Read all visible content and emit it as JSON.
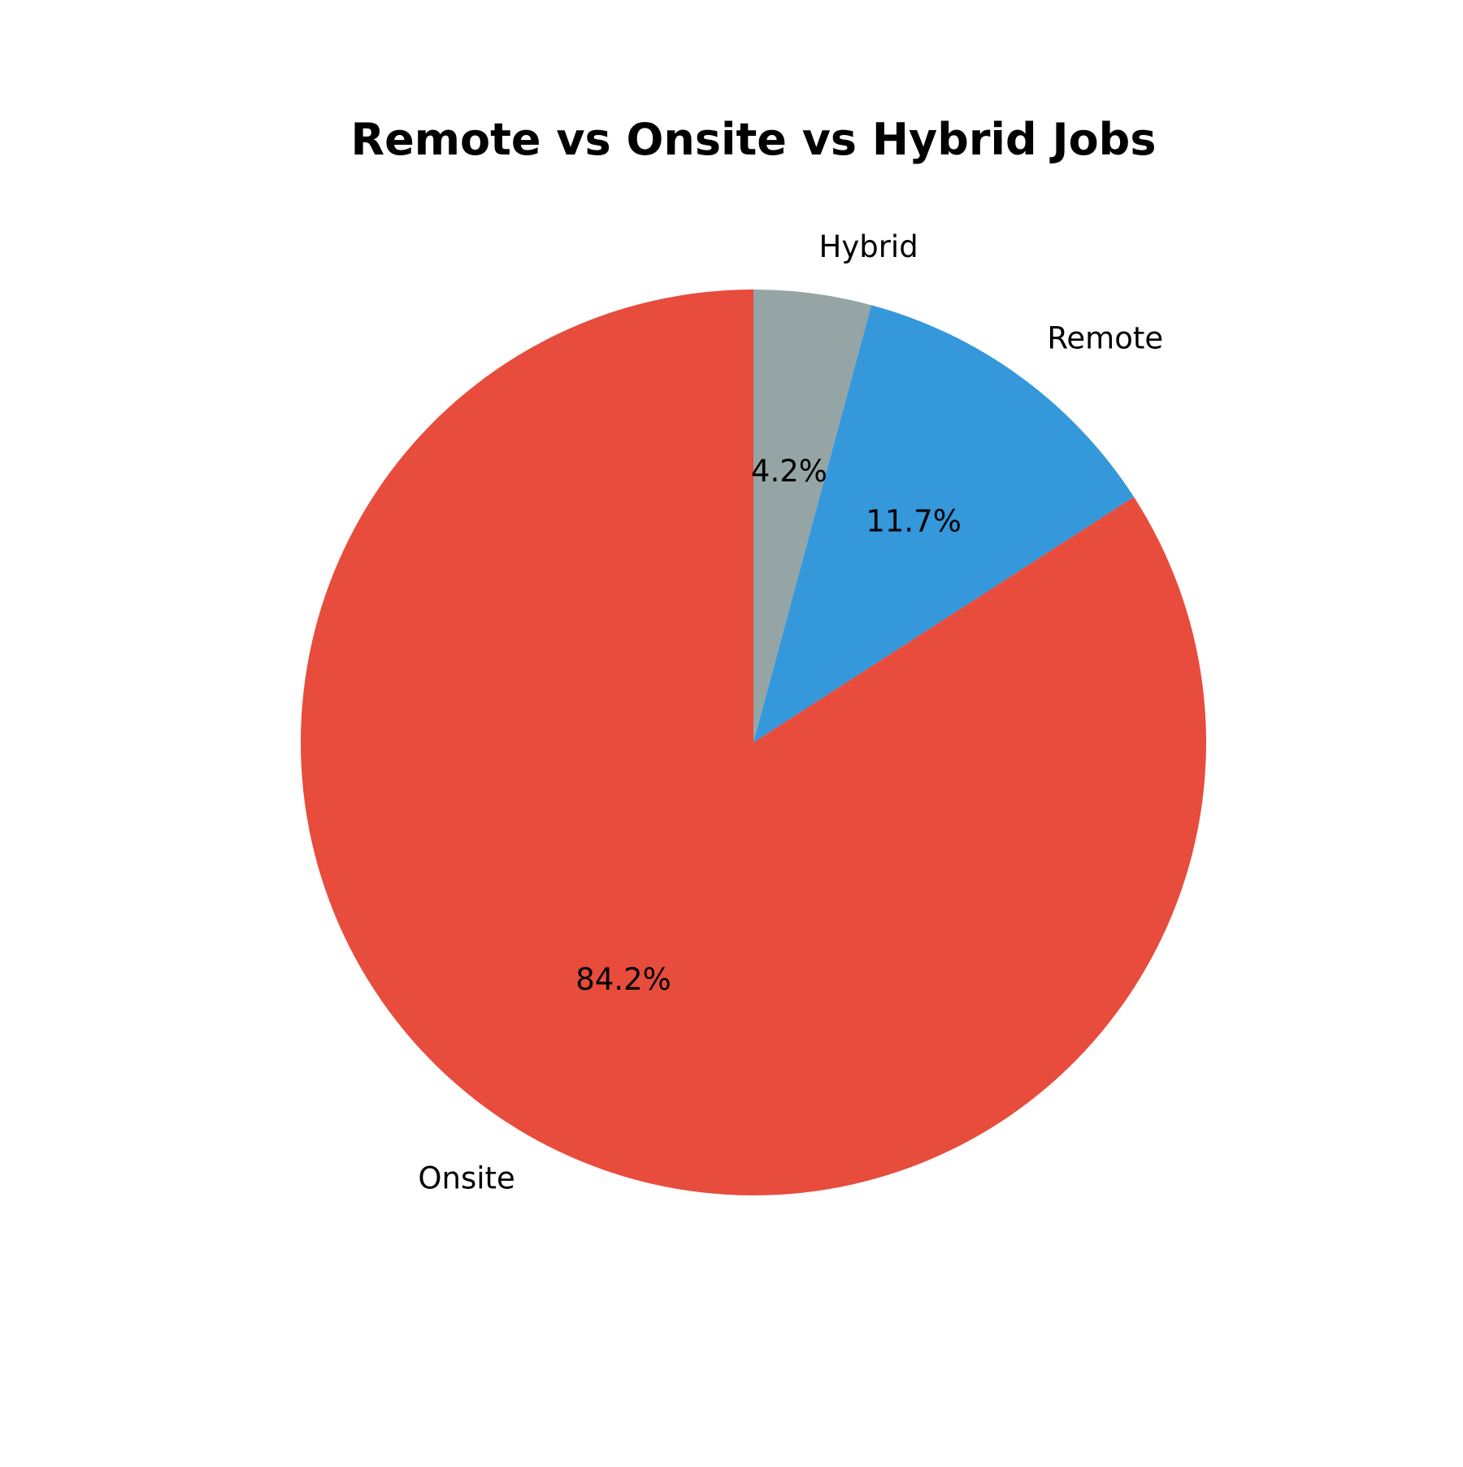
{
  "chart_data": {
    "type": "pie",
    "title": "Remote vs Onsite vs Hybrid Jobs",
    "start": "top",
    "direction": "clockwise",
    "slices": [
      {
        "label": "Hybrid",
        "value": 4.2,
        "pct_label": "4.2%",
        "color": "#95a5a6"
      },
      {
        "label": "Remote",
        "value": 11.7,
        "pct_label": "11.7%",
        "color": "#3498db"
      },
      {
        "label": "Onsite",
        "value": 84.2,
        "pct_label": "84.2%",
        "color": "#e74c3c"
      }
    ]
  }
}
